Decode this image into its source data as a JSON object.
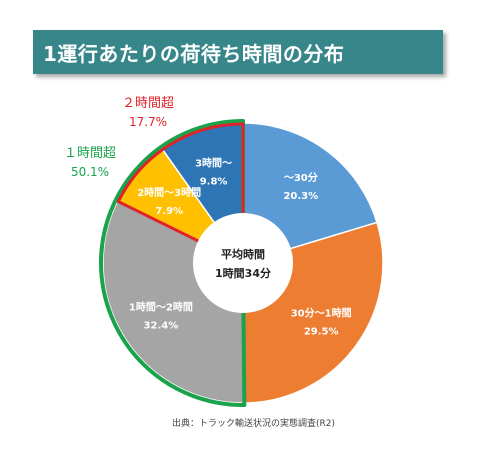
{
  "title": "1運行あたりの荷待ち時間の分布",
  "source_note": "出典：トラック輸送状況の実態調査(R2)",
  "callouts": {
    "over2h": {
      "label": "２時間超",
      "pct": "17.7%",
      "color": "#e0222a"
    },
    "over1h": {
      "label": "１時間超",
      "pct": "50.1%",
      "color": "#1aa34a"
    }
  },
  "chart_data": {
    "type": "pie",
    "title": "1運行あたりの荷待ち時間の分布",
    "center_label": [
      "平均時間",
      "1時間34分"
    ],
    "slices": [
      {
        "label": "～30分",
        "value": 20.3,
        "value_label": "20.3%",
        "color": "#5b9bd5"
      },
      {
        "label": "30分～1時間",
        "value": 29.5,
        "value_label": "29.5%",
        "color": "#ed7d31"
      },
      {
        "label": "1時間～2時間",
        "value": 32.4,
        "value_label": "32.4%",
        "color": "#a5a5a5"
      },
      {
        "label": "2時間～3時間",
        "value": 7.9,
        "value_label": "7.9%",
        "color": "#ffc000"
      },
      {
        "label": "3時間～",
        "value": 9.8,
        "value_label": "9.8%",
        "color": "#2e75b6"
      }
    ]
  }
}
